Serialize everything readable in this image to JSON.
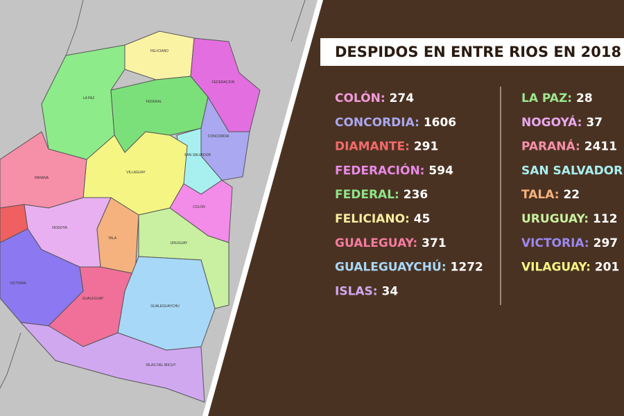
{
  "title": "DESPIDOS EN ENTRE RIOS EN 2018",
  "list": [
    {
      "name": "COLÓN:",
      "value": 274,
      "color": "#f39bdc"
    },
    {
      "name": "CONCORDIA:",
      "value": 1606,
      "color": "#a9a8f0"
    },
    {
      "name": "DIAMANTE:",
      "value": 291,
      "color": "#f26a6a"
    },
    {
      "name": "FEDERACIÓN:",
      "value": 594,
      "color": "#e98ae8"
    },
    {
      "name": "FEDERAL:",
      "value": 236,
      "color": "#8de58a"
    },
    {
      "name": "FELICIANO:",
      "value": 45,
      "color": "#f7eea0"
    },
    {
      "name": "GUALEGUAY:",
      "value": 371,
      "color": "#f57ba0"
    },
    {
      "name": "GUALEGUAYCHÚ:",
      "value": 1272,
      "color": "#a8d8f8"
    },
    {
      "name": "ISLAS:",
      "value": 34,
      "color": "#d0a8f0"
    },
    {
      "name": "LA PAZ:",
      "value": 28,
      "color": "#9be88f"
    },
    {
      "name": "NOGOYÁ:",
      "value": 37,
      "color": "#e8a8f0"
    },
    {
      "name": "PARANÁ:",
      "value": 2411,
      "color": "#f68fa8"
    },
    {
      "name": "SAN SALVADOR:",
      "color": "#a8f0f0"
    },
    {
      "name": "TALA:",
      "value": 22,
      "color": "#f5b27e"
    },
    {
      "name": "URUGUAY:",
      "value": 112,
      "color": "#c8f0a0"
    },
    {
      "name": "VICTORIA:",
      "value": 297,
      "color": "#9b88f0"
    },
    {
      "name": "VILAGUAY:",
      "value": 201,
      "color": "#f5f584"
    }
  ],
  "map": {
    "labels": [
      "FELICIANO",
      "FEDERACION",
      "LA PAZ",
      "FEDERAL",
      "CONCORDIA",
      "SAN SALVADOR",
      "PARANA",
      "VILLAGUAY",
      "COLON",
      "NOGOYA",
      "TALA",
      "URUGUAY",
      "VICTORIA",
      "GUALEGUAY",
      "GUALEGUAYCHU",
      "ISLAS DEL IBICUY"
    ]
  }
}
